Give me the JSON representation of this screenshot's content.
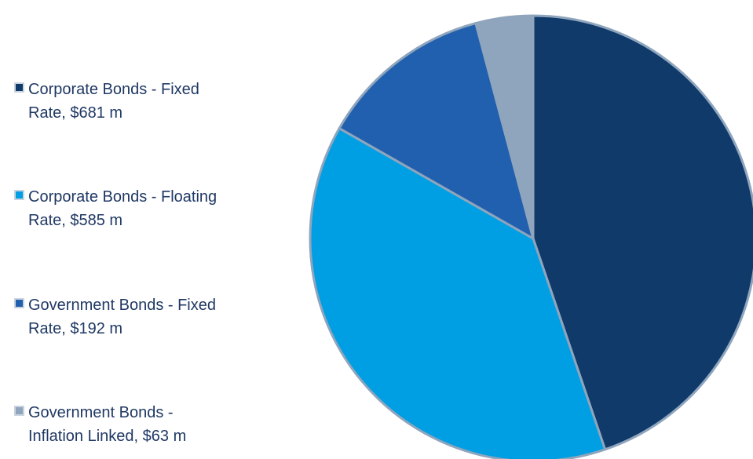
{
  "chart_data": {
    "type": "pie",
    "categories": [
      "Corporate Bonds - Fixed Rate, $681 m",
      "Corporate Bonds - Floating Rate, $585 m",
      "Government Bonds - Fixed Rate, $192 m",
      "Government Bonds - Inflation Linked, $63 m"
    ],
    "values": [
      681,
      585,
      192,
      63
    ],
    "colors": [
      "#0f3a6a",
      "#009fe3",
      "#2160ae",
      "#8fa5bd"
    ],
    "legend": {
      "position": "left",
      "items": [
        {
          "label": "Corporate Bonds - Fixed\nRate, $681 m",
          "color": "#0f3a6a"
        },
        {
          "label": "Corporate Bonds - Floating\nRate, $585 m",
          "color": "#009fe3"
        },
        {
          "label": "Government Bonds - Fixed\nRate, $192 m",
          "color": "#2160ae"
        },
        {
          "label": "Government Bonds -\nInflation Linked, $63 m",
          "color": "#8fa5bd"
        }
      ]
    },
    "slice_border_color": "#8fa5bd"
  }
}
